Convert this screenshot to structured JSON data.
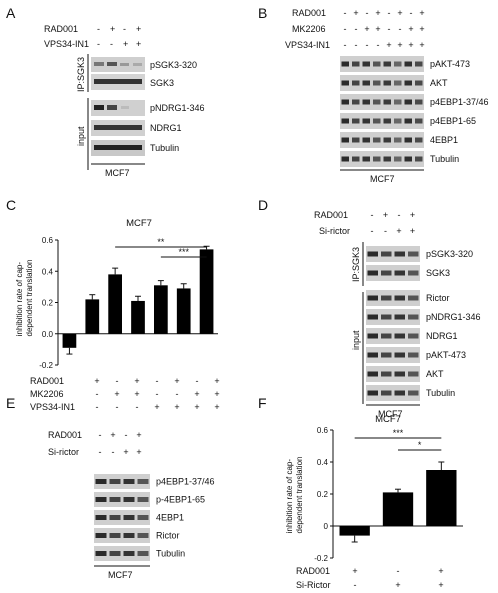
{
  "panels": [
    "A",
    "B",
    "C",
    "D",
    "E",
    "F"
  ],
  "A": {
    "conditions": [
      {
        "label": "RAD001",
        "signs": [
          "-",
          "+",
          "-",
          "+"
        ]
      },
      {
        "label": "VPS34-IN1",
        "signs": [
          "-",
          "-",
          "+",
          "+"
        ]
      }
    ],
    "groups": [
      "IP:SGK3",
      "input"
    ],
    "blots": [
      "pSGK3-320",
      "SGK3",
      "pNDRG1-346",
      "NDRG1",
      "Tubulin"
    ],
    "cell_line": "MCF7"
  },
  "B": {
    "conditions": [
      {
        "label": "RAD001",
        "signs": [
          "-",
          "+",
          "-",
          "+",
          "-",
          "+",
          "-",
          "+"
        ]
      },
      {
        "label": "MK2206",
        "signs": [
          "-",
          "-",
          "+",
          "+",
          "-",
          "-",
          "+",
          "+"
        ]
      },
      {
        "label": "VPS34-IN1",
        "signs": [
          "-",
          "-",
          "-",
          "-",
          "+",
          "+",
          "+",
          "+"
        ]
      }
    ],
    "blots": [
      "pAKT-473",
      "AKT",
      "p4EBP1-37/46",
      "p4EBP1-65",
      "4EBP1",
      "Tubulin"
    ],
    "cell_line": "MCF7"
  },
  "C": {
    "title": "MCF7",
    "conditions": [
      {
        "label": "RAD001",
        "signs": [
          "+",
          "-",
          "+",
          "-",
          "+",
          "-",
          "+"
        ]
      },
      {
        "label": "MK2206",
        "signs": [
          "-",
          "+",
          "+",
          "-",
          "-",
          "+",
          "+"
        ]
      },
      {
        "label": "VPS34-IN1",
        "signs": [
          "-",
          "-",
          "-",
          "+",
          "+",
          "+",
          "+"
        ]
      }
    ],
    "sig": [
      "**",
      "***"
    ]
  },
  "D": {
    "conditions": [
      {
        "label": "RAD001",
        "signs": [
          "-",
          "+",
          "-",
          "+"
        ]
      },
      {
        "label": "Si-rictor",
        "signs": [
          "-",
          "-",
          "+",
          "+"
        ]
      }
    ],
    "groups": [
      "IP:SGK3",
      "input"
    ],
    "blots": [
      "pSGK3-320",
      "SGK3",
      "Rictor",
      "pNDRG1-346",
      "NDRG1",
      "pAKT-473",
      "AKT",
      "Tubulin"
    ],
    "cell_line": "MCF7"
  },
  "E": {
    "conditions": [
      {
        "label": "RAD001",
        "signs": [
          "-",
          "+",
          "-",
          "+"
        ]
      },
      {
        "label": "Si-rictor",
        "signs": [
          "-",
          "-",
          "+",
          "+"
        ]
      }
    ],
    "blots": [
      "p4EBP1-37/46",
      "p-4EBP1-65",
      "4EBP1",
      "Rictor",
      "Tubulin"
    ],
    "cell_line": "MCF7"
  },
  "F": {
    "title": "MCF7",
    "conditions": [
      {
        "label": "RAD001",
        "signs": [
          "+",
          "-",
          "+"
        ]
      },
      {
        "label": "Si-Rictor",
        "signs": [
          "-",
          "+",
          "+"
        ]
      }
    ],
    "sig": [
      "***",
      "*"
    ]
  },
  "chart_data": [
    {
      "type": "bar",
      "title": "MCF7",
      "ylabel": "inhibition rate of cap-dependent translation",
      "ylim": [
        -0.2,
        0.6
      ],
      "yticks": [
        "-0.2",
        "0.0",
        "0.2",
        "0.4",
        "0.6"
      ],
      "categories": [
        "1",
        "2",
        "3",
        "4",
        "5",
        "6",
        "7"
      ],
      "values": [
        -0.09,
        0.22,
        0.38,
        0.21,
        0.31,
        0.29,
        0.54
      ],
      "errors": [
        0.04,
        0.03,
        0.04,
        0.03,
        0.03,
        0.03,
        0.02
      ],
      "bar_color": "#000000"
    },
    {
      "type": "bar",
      "title": "MCF7",
      "ylabel": "inhibition rate of cap-dependent translation",
      "ylim": [
        -0.2,
        0.6
      ],
      "yticks": [
        "-0.2",
        "0",
        "0.2",
        "0.4",
        "0.6"
      ],
      "categories": [
        "1",
        "2",
        "3"
      ],
      "values": [
        -0.06,
        0.21,
        0.35
      ],
      "errors": [
        0.04,
        0.02,
        0.05
      ],
      "bar_color": "#000000"
    }
  ]
}
